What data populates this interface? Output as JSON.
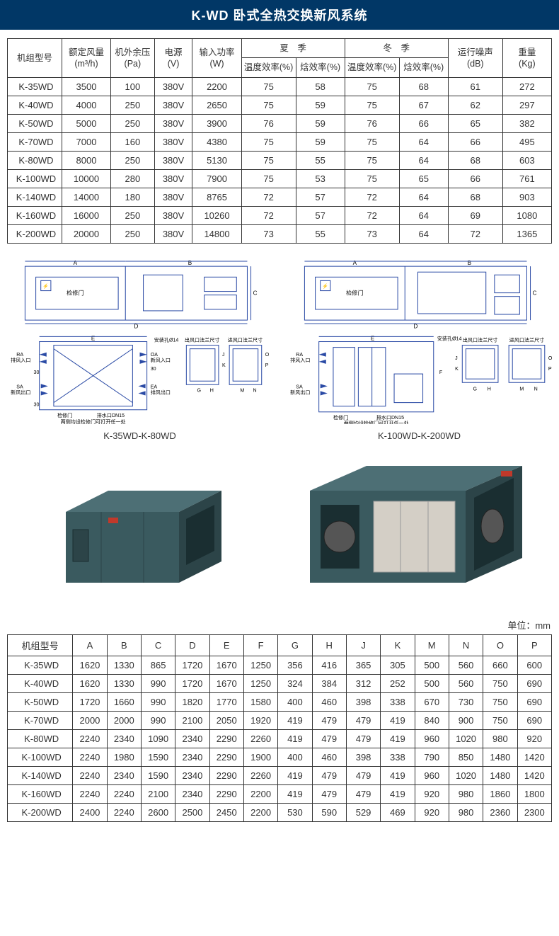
{
  "title": "K-WD 卧式全热交换新风系统",
  "spec_table": {
    "header_row1": {
      "model": "机组型号",
      "airflow": "额定风量\n(m³/h)",
      "ext_pressure": "机外余压\n(Pa)",
      "power_supply": "电源\n(V)",
      "input_power": "输入功率\n(W)",
      "summer": "夏　季",
      "winter": "冬　季",
      "noise": "运行噪声\n(dB)",
      "weight": "重量\n(Kg)"
    },
    "header_row2": {
      "summer_temp": "温度效率(%)",
      "summer_enth": "焓效率(%)",
      "winter_temp": "温度效率(%)",
      "winter_enth": "焓效率(%)"
    },
    "rows": [
      {
        "model": "K-35WD",
        "airflow": "3500",
        "esp": "100",
        "ps": "380V",
        "ip": "2200",
        "st": "75",
        "se": "58",
        "wt": "75",
        "we": "68",
        "noise": "61",
        "wgt": "272"
      },
      {
        "model": "K-40WD",
        "airflow": "4000",
        "esp": "250",
        "ps": "380V",
        "ip": "2650",
        "st": "75",
        "se": "59",
        "wt": "75",
        "we": "67",
        "noise": "62",
        "wgt": "297"
      },
      {
        "model": "K-50WD",
        "airflow": "5000",
        "esp": "250",
        "ps": "380V",
        "ip": "3900",
        "st": "76",
        "se": "59",
        "wt": "76",
        "we": "66",
        "noise": "65",
        "wgt": "382"
      },
      {
        "model": "K-70WD",
        "airflow": "7000",
        "esp": "160",
        "ps": "380V",
        "ip": "4380",
        "st": "75",
        "se": "59",
        "wt": "75",
        "we": "64",
        "noise": "66",
        "wgt": "495"
      },
      {
        "model": "K-80WD",
        "airflow": "8000",
        "esp": "250",
        "ps": "380V",
        "ip": "5130",
        "st": "75",
        "se": "55",
        "wt": "75",
        "we": "64",
        "noise": "68",
        "wgt": "603"
      },
      {
        "model": "K-100WD",
        "airflow": "10000",
        "esp": "280",
        "ps": "380V",
        "ip": "7900",
        "st": "75",
        "se": "53",
        "wt": "75",
        "we": "65",
        "noise": "66",
        "wgt": "761"
      },
      {
        "model": "K-140WD",
        "airflow": "14000",
        "esp": "180",
        "ps": "380V",
        "ip": "8765",
        "st": "72",
        "se": "57",
        "wt": "72",
        "we": "64",
        "noise": "68",
        "wgt": "903"
      },
      {
        "model": "K-160WD",
        "airflow": "16000",
        "esp": "250",
        "ps": "380V",
        "ip": "10260",
        "st": "72",
        "se": "57",
        "wt": "72",
        "we": "64",
        "noise": "69",
        "wgt": "1080"
      },
      {
        "model": "K-200WD",
        "airflow": "20000",
        "esp": "250",
        "ps": "380V",
        "ip": "14800",
        "st": "73",
        "se": "55",
        "wt": "73",
        "we": "64",
        "noise": "72",
        "wgt": "1365"
      }
    ]
  },
  "diagrams": {
    "left_caption": "K-35WD-K-80WD",
    "right_caption": "K-100WD-K-200WD",
    "labels": {
      "access_door": "检修门",
      "mount_hole": "安装孔Ø14",
      "ra_in": "RA\n排风入口",
      "sa_out": "SA\n新风出口",
      "oa_in": "OA\n新风入口",
      "ea_out": "EA\n排风出口",
      "drain": "排水口DN15",
      "two_side_note": "两侧均设检修门可打开任一处",
      "out_flange": "出风口法兰尺寸",
      "in_flange": "进风口法兰尺寸"
    }
  },
  "unit_label": "单位：mm",
  "dim_table": {
    "headers": [
      "机组型号",
      "A",
      "B",
      "C",
      "D",
      "E",
      "F",
      "G",
      "H",
      "J",
      "K",
      "M",
      "N",
      "O",
      "P"
    ],
    "rows": [
      {
        "model": "K-35WD",
        "v": [
          "1620",
          "1330",
          "865",
          "1720",
          "1670",
          "1250",
          "356",
          "416",
          "365",
          "305",
          "500",
          "560",
          "660",
          "600"
        ]
      },
      {
        "model": "K-40WD",
        "v": [
          "1620",
          "1330",
          "990",
          "1720",
          "1670",
          "1250",
          "324",
          "384",
          "312",
          "252",
          "500",
          "560",
          "750",
          "690"
        ]
      },
      {
        "model": "K-50WD",
        "v": [
          "1720",
          "1660",
          "990",
          "1820",
          "1770",
          "1580",
          "400",
          "460",
          "398",
          "338",
          "670",
          "730",
          "750",
          "690"
        ]
      },
      {
        "model": "K-70WD",
        "v": [
          "2000",
          "2000",
          "990",
          "2100",
          "2050",
          "1920",
          "419",
          "479",
          "479",
          "419",
          "840",
          "900",
          "750",
          "690"
        ]
      },
      {
        "model": "K-80WD",
        "v": [
          "2240",
          "2340",
          "1090",
          "2340",
          "2290",
          "2260",
          "419",
          "479",
          "479",
          "419",
          "960",
          "1020",
          "980",
          "920"
        ]
      },
      {
        "model": "K-100WD",
        "v": [
          "2240",
          "1980",
          "1590",
          "2340",
          "2290",
          "1900",
          "400",
          "460",
          "398",
          "338",
          "790",
          "850",
          "1480",
          "1420"
        ]
      },
      {
        "model": "K-140WD",
        "v": [
          "2240",
          "2340",
          "1590",
          "2340",
          "2290",
          "2260",
          "419",
          "479",
          "479",
          "419",
          "960",
          "1020",
          "1480",
          "1420"
        ]
      },
      {
        "model": "K-160WD",
        "v": [
          "2240",
          "2240",
          "2100",
          "2340",
          "2290",
          "2200",
          "419",
          "479",
          "479",
          "419",
          "920",
          "980",
          "1860",
          "1800"
        ]
      },
      {
        "model": "K-200WD",
        "v": [
          "2400",
          "2240",
          "2600",
          "2500",
          "2450",
          "2200",
          "530",
          "590",
          "529",
          "469",
          "920",
          "980",
          "2360",
          "2300"
        ]
      }
    ]
  },
  "colors": {
    "title_bg": "#013766",
    "border": "#333333",
    "diagram_stroke": "#2a4aa5",
    "photo_body": "#3a5a5f",
    "photo_body_light": "#4d6f75",
    "photo_body_dark": "#2c4448"
  }
}
